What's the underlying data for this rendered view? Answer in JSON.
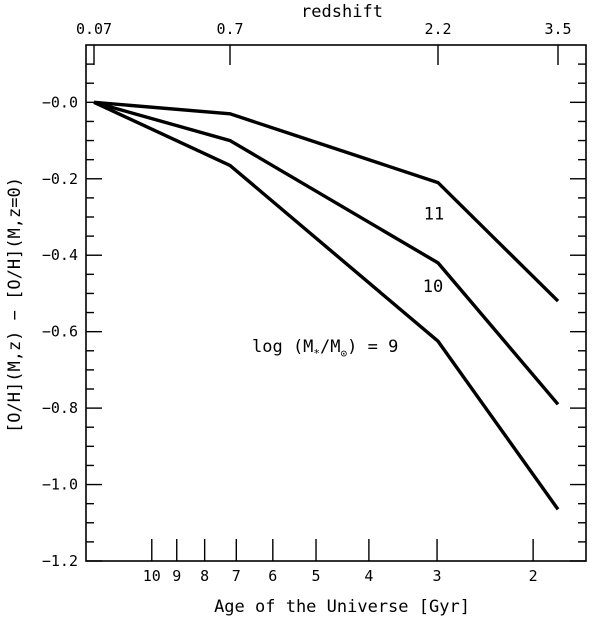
{
  "chart_data": {
    "type": "line",
    "xlabel": "Age of the Universe [Gyr]",
    "ylabel": "[O/H](M,z) − [O/H](M,z=0)",
    "top_axis_label": "redshift",
    "y_ticks": [
      -0.0,
      -0.2,
      -0.4,
      -0.6,
      -0.8,
      -1.0,
      -1.2
    ],
    "y_tick_labels": [
      "−0.0",
      "−0.2",
      "−0.4",
      "−0.6",
      "−0.8",
      "−1.0",
      "−1.2"
    ],
    "ylim": [
      -1.2,
      0.15
    ],
    "x_ticks": [
      10,
      9,
      8,
      7,
      6,
      5,
      4,
      3,
      2
    ],
    "x_tick_labels": [
      "10",
      "9",
      "8",
      "7",
      "6",
      "5",
      "4",
      "3",
      "2"
    ],
    "top_ticks": [
      0.07,
      0.7,
      2.2,
      3.5
    ],
    "top_tick_labels": [
      "0.07",
      "0.7",
      "2.2",
      "3.5"
    ],
    "series": [
      {
        "name": "11",
        "redshift": [
          0.07,
          0.7,
          2.2,
          3.5
        ],
        "values": [
          0.0,
          -0.03,
          -0.21,
          -0.52
        ]
      },
      {
        "name": "10",
        "redshift": [
          0.07,
          0.7,
          2.2,
          3.5
        ],
        "values": [
          0.0,
          -0.1,
          -0.42,
          -0.79
        ]
      },
      {
        "name": "9",
        "redshift": [
          0.07,
          0.7,
          2.2,
          3.5
        ],
        "values": [
          0.0,
          -0.165,
          -0.625,
          -1.065
        ]
      }
    ],
    "annotation": {
      "prefix": "log (M",
      "sub1": "*",
      "mid": "/M",
      "sub2": "⊙",
      "suffix": ") = 9"
    },
    "grid": false,
    "legend": "none"
  }
}
